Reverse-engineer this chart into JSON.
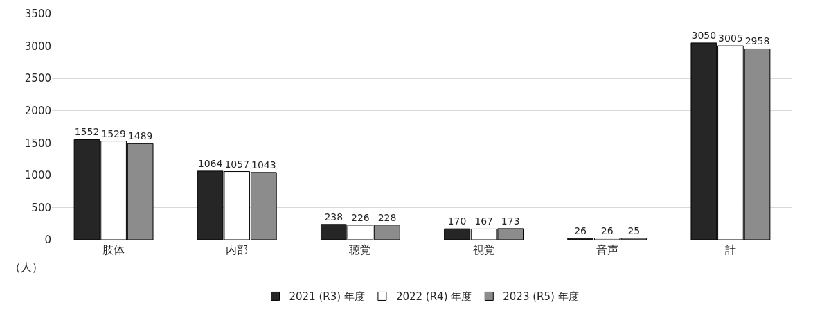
{
  "chart_data": {
    "type": "bar",
    "ylabel": "（人）",
    "categories": [
      "肢体",
      "内部",
      "聴覚",
      "視覚",
      "音声",
      "計"
    ],
    "series": [
      {
        "name": "2021 (R3) 年度",
        "color": "#262626",
        "values": [
          1552,
          1064,
          238,
          170,
          26,
          3050
        ]
      },
      {
        "name": "2022 (R4) 年度",
        "color": "#ffffff",
        "values": [
          1529,
          1057,
          226,
          167,
          26,
          3005
        ]
      },
      {
        "name": "2023 (R5) 年度",
        "color": "#8c8c8c",
        "values": [
          1489,
          1043,
          228,
          173,
          25,
          2958
        ]
      }
    ],
    "ylim": [
      0,
      3500
    ],
    "yticks": [
      0,
      500,
      1000,
      1500,
      2000,
      2500,
      3000,
      3500
    ],
    "grid": "y",
    "legend": "bottom",
    "data_labels": true
  }
}
